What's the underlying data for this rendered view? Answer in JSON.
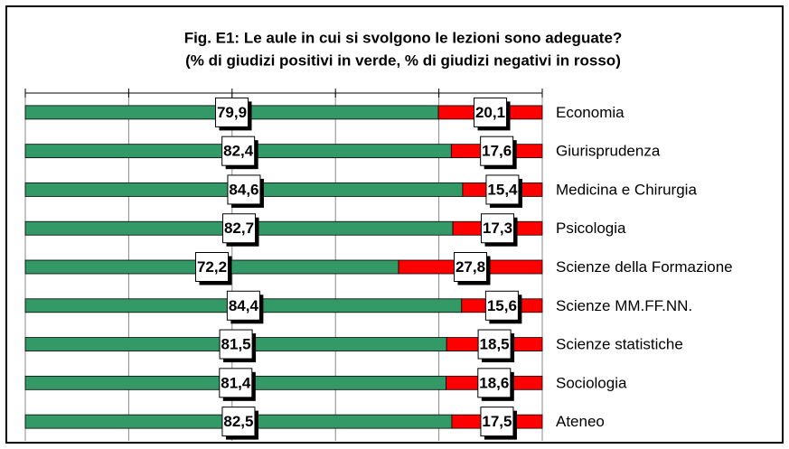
{
  "chart_data": {
    "type": "stacked_hbar",
    "title": "Fig. E1: Le aule in cui si svolgono le lezioni sono adeguate?",
    "subtitle": "(% di giudizi positivi in verde, % di giudizi negativi in rosso)",
    "categories": [
      "Economia",
      "Giurisprudenza",
      "Medicina e Chirurgia",
      "Psicologia",
      "Scienze della Formazione",
      "Scienze MM.FF.NN.",
      "Scienze statistiche",
      "Sociologia",
      "Ateneo"
    ],
    "series": [
      {
        "color": "#339966",
        "values": [
          79.9,
          82.4,
          84.6,
          82.7,
          72.2,
          84.4,
          81.5,
          81.4,
          82.5
        ],
        "value_labels": [
          "79,9",
          "82,4",
          "84,6",
          "82,7",
          "72,2",
          "84,4",
          "81,5",
          "81,4",
          "82,5"
        ]
      },
      {
        "color": "#ff0000",
        "values": [
          20.1,
          17.6,
          15.4,
          17.3,
          27.8,
          15.6,
          18.5,
          18.6,
          17.5
        ],
        "value_labels": [
          "20,1",
          "17,6",
          "15,4",
          "17,3",
          "27,8",
          "15,6",
          "18,5",
          "18,6",
          "17,5"
        ]
      }
    ],
    "xlim": [
      0,
      100
    ],
    "xticks": [
      0,
      20,
      40,
      60,
      80,
      100
    ],
    "grid": true
  }
}
